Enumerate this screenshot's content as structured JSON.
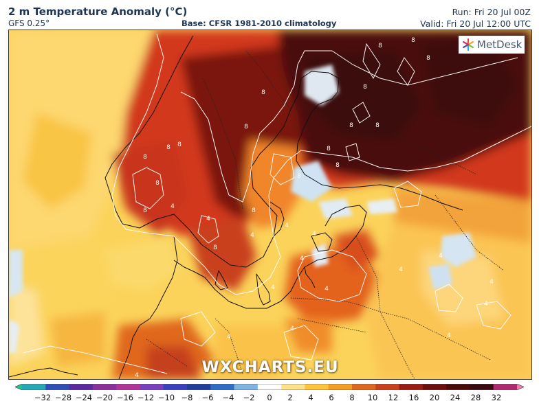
{
  "header": {
    "title": "2 m Temperature Anomaly (°C)",
    "model": "GFS 0.25°",
    "base": "Base: CFSR 1981-2010 climatology",
    "run": "Run: Fri 20 Jul 00Z",
    "valid": "Valid: Fri 20 Jul 12:00 UTC"
  },
  "logo": {
    "text": "MetDesk",
    "icon": "snowflake-icon"
  },
  "watermark": "WXCHARTS.EU",
  "colorbar": {
    "tick_labels": [
      "−32",
      "−28",
      "−24",
      "−20",
      "−16",
      "−12",
      "−10",
      "−8",
      "−6",
      "−4",
      "−2",
      "0",
      "2",
      "4",
      "6",
      "8",
      "10",
      "12",
      "16",
      "20",
      "24",
      "28",
      "32"
    ],
    "colors": [
      "#1fc493",
      "#26a8b6",
      "#2f4fb8",
      "#5a2ba0",
      "#8b2f9b",
      "#b33497",
      "#7a3ec0",
      "#3c3fbf",
      "#1f3f99",
      "#2f6cc7",
      "#7fb3e0",
      "#ffffff",
      "#ffe28a",
      "#ffc53a",
      "#f59f22",
      "#e0681e",
      "#c9401a",
      "#9a1c12",
      "#6e0f0c",
      "#4a0c0a",
      "#3a0a0e",
      "#b02a6f",
      "#f07ab2"
    ]
  },
  "contour_labels": [
    "8",
    "8",
    "8",
    "8",
    "8",
    "8",
    "8",
    "8",
    "8",
    "8",
    "8",
    "8",
    "8",
    "8",
    "8",
    "8",
    "8",
    "8",
    "4",
    "4",
    "4",
    "4",
    "4",
    "4",
    "4",
    "4",
    "4",
    "4",
    "4",
    "4",
    "4",
    "4",
    "4",
    "4"
  ]
}
